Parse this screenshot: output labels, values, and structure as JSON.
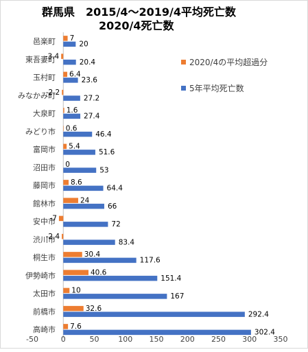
{
  "chart_data": {
    "type": "bar",
    "orientation": "horizontal",
    "title_lines": [
      "群馬県　2015/4～2019/4平均死亡数",
      "2020/4死亡数"
    ],
    "categories": [
      "邑楽町",
      "東吾妻町",
      "玉村町",
      "みなかみ町",
      "大泉町",
      "みどり市",
      "富岡市",
      "沼田市",
      "藤岡市",
      "館林市",
      "安中市",
      "渋川市",
      "桐生市",
      "伊勢崎市",
      "太田市",
      "前橋市",
      "高崎市"
    ],
    "series": [
      {
        "name": "2020/4の平均超過分",
        "color": "#ed7d31",
        "values": [
          7,
          -3.4,
          6.4,
          -2.2,
          1.6,
          0.6,
          5.4,
          0,
          8.6,
          24,
          -7,
          -2.4,
          30.4,
          40.6,
          10,
          32.6,
          7.6
        ]
      },
      {
        "name": "5年平均死亡数",
        "color": "#4472c4",
        "values": [
          20,
          20.4,
          23.6,
          27.2,
          27.4,
          46.4,
          51.6,
          53,
          64.4,
          66,
          72,
          83.4,
          117.6,
          151.4,
          167,
          292.4,
          302.4
        ]
      }
    ],
    "data_labels": [
      [
        "7",
        "-3.4",
        "6.4",
        "-2.2",
        "1.6",
        "0.6",
        "5.4",
        "0",
        "8.6",
        "24",
        "-7",
        "-2.4",
        "30.4",
        "40.6",
        "10",
        "32.6",
        "7.6"
      ],
      [
        "20",
        "20.4",
        "23.6",
        "27.2",
        "27.4",
        "46.4",
        "51.6",
        "53",
        "64.4",
        "66",
        "72",
        "83.4",
        "117.6",
        "151.4",
        "167",
        "292.4",
        "302.4"
      ]
    ],
    "xlim": [
      -50,
      350
    ],
    "xticks": [
      -50,
      0,
      50,
      100,
      150,
      200,
      250,
      300,
      350
    ],
    "grid": false,
    "legend_position": "right"
  }
}
